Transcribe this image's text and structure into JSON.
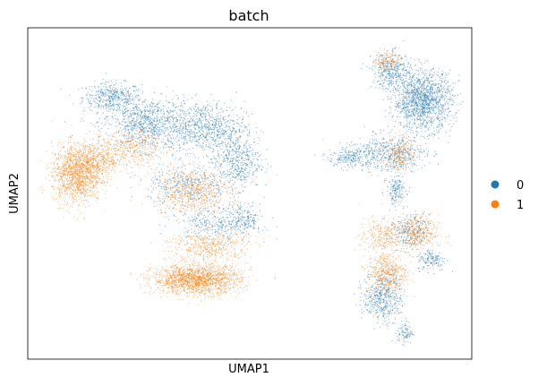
{
  "chart_data": {
    "type": "scatter",
    "title": "batch",
    "xlabel": "UMAP1",
    "ylabel": "UMAP2",
    "grid": false,
    "ticks": "none",
    "legend_position": "right",
    "xlim": [
      0,
      100
    ],
    "ylim": [
      0,
      100
    ],
    "series": [
      {
        "name": "0",
        "color": "#1f77b4",
        "regions": [
          {
            "cx": 19,
            "cy": 79,
            "rx": 6,
            "ry": 4,
            "n": 420
          },
          {
            "cx": 27,
            "cy": 71,
            "rx": 9,
            "ry": 7,
            "n": 900
          },
          {
            "cx": 40,
            "cy": 70,
            "rx": 8,
            "ry": 7,
            "n": 700
          },
          {
            "cx": 47,
            "cy": 60,
            "rx": 5,
            "ry": 8,
            "n": 500
          },
          {
            "cx": 36,
            "cy": 52,
            "rx": 8,
            "ry": 6,
            "n": 380
          },
          {
            "cx": 42,
            "cy": 41,
            "rx": 8,
            "ry": 5,
            "n": 320
          },
          {
            "cx": 49,
            "cy": 42,
            "rx": 3,
            "ry": 4,
            "n": 160
          },
          {
            "cx": 89,
            "cy": 78,
            "rx": 6,
            "ry": 8,
            "n": 1400
          },
          {
            "cx": 82,
            "cy": 87,
            "rx": 4,
            "ry": 5,
            "n": 380
          },
          {
            "cx": 82,
            "cy": 62,
            "rx": 7,
            "ry": 5,
            "n": 500
          },
          {
            "cx": 73,
            "cy": 61,
            "rx": 5,
            "ry": 3,
            "n": 250
          },
          {
            "cx": 83,
            "cy": 51,
            "rx": 2,
            "ry": 4,
            "n": 160
          },
          {
            "cx": 80,
            "cy": 19,
            "rx": 4,
            "ry": 7,
            "n": 500
          },
          {
            "cx": 86,
            "cy": 38,
            "rx": 4,
            "ry": 5,
            "n": 260
          },
          {
            "cx": 85,
            "cy": 8,
            "rx": 1.6,
            "ry": 3,
            "n": 90
          },
          {
            "cx": 91,
            "cy": 30,
            "rx": 3,
            "ry": 3,
            "n": 150
          }
        ]
      },
      {
        "name": "1",
        "color": "#ff7f0e",
        "regions": [
          {
            "cx": 11,
            "cy": 56,
            "rx": 5,
            "ry": 8,
            "n": 1200
          },
          {
            "cx": 16,
            "cy": 60,
            "rx": 5,
            "ry": 5,
            "n": 400
          },
          {
            "cx": 38,
            "cy": 24,
            "rx": 9,
            "ry": 4,
            "n": 1500
          },
          {
            "cx": 37,
            "cy": 51,
            "rx": 8,
            "ry": 6,
            "n": 550
          },
          {
            "cx": 41,
            "cy": 34,
            "rx": 8,
            "ry": 5,
            "n": 420
          },
          {
            "cx": 24,
            "cy": 64,
            "rx": 6,
            "ry": 5,
            "n": 300
          },
          {
            "cx": 81,
            "cy": 90,
            "rx": 2.5,
            "ry": 3,
            "n": 110
          },
          {
            "cx": 84,
            "cy": 62,
            "rx": 3,
            "ry": 5,
            "n": 200
          },
          {
            "cx": 87,
            "cy": 38,
            "rx": 5,
            "ry": 5,
            "n": 380
          },
          {
            "cx": 81,
            "cy": 26,
            "rx": 4,
            "ry": 6,
            "n": 420
          },
          {
            "cx": 79,
            "cy": 37,
            "rx": 4,
            "ry": 5,
            "n": 200
          }
        ]
      }
    ]
  }
}
